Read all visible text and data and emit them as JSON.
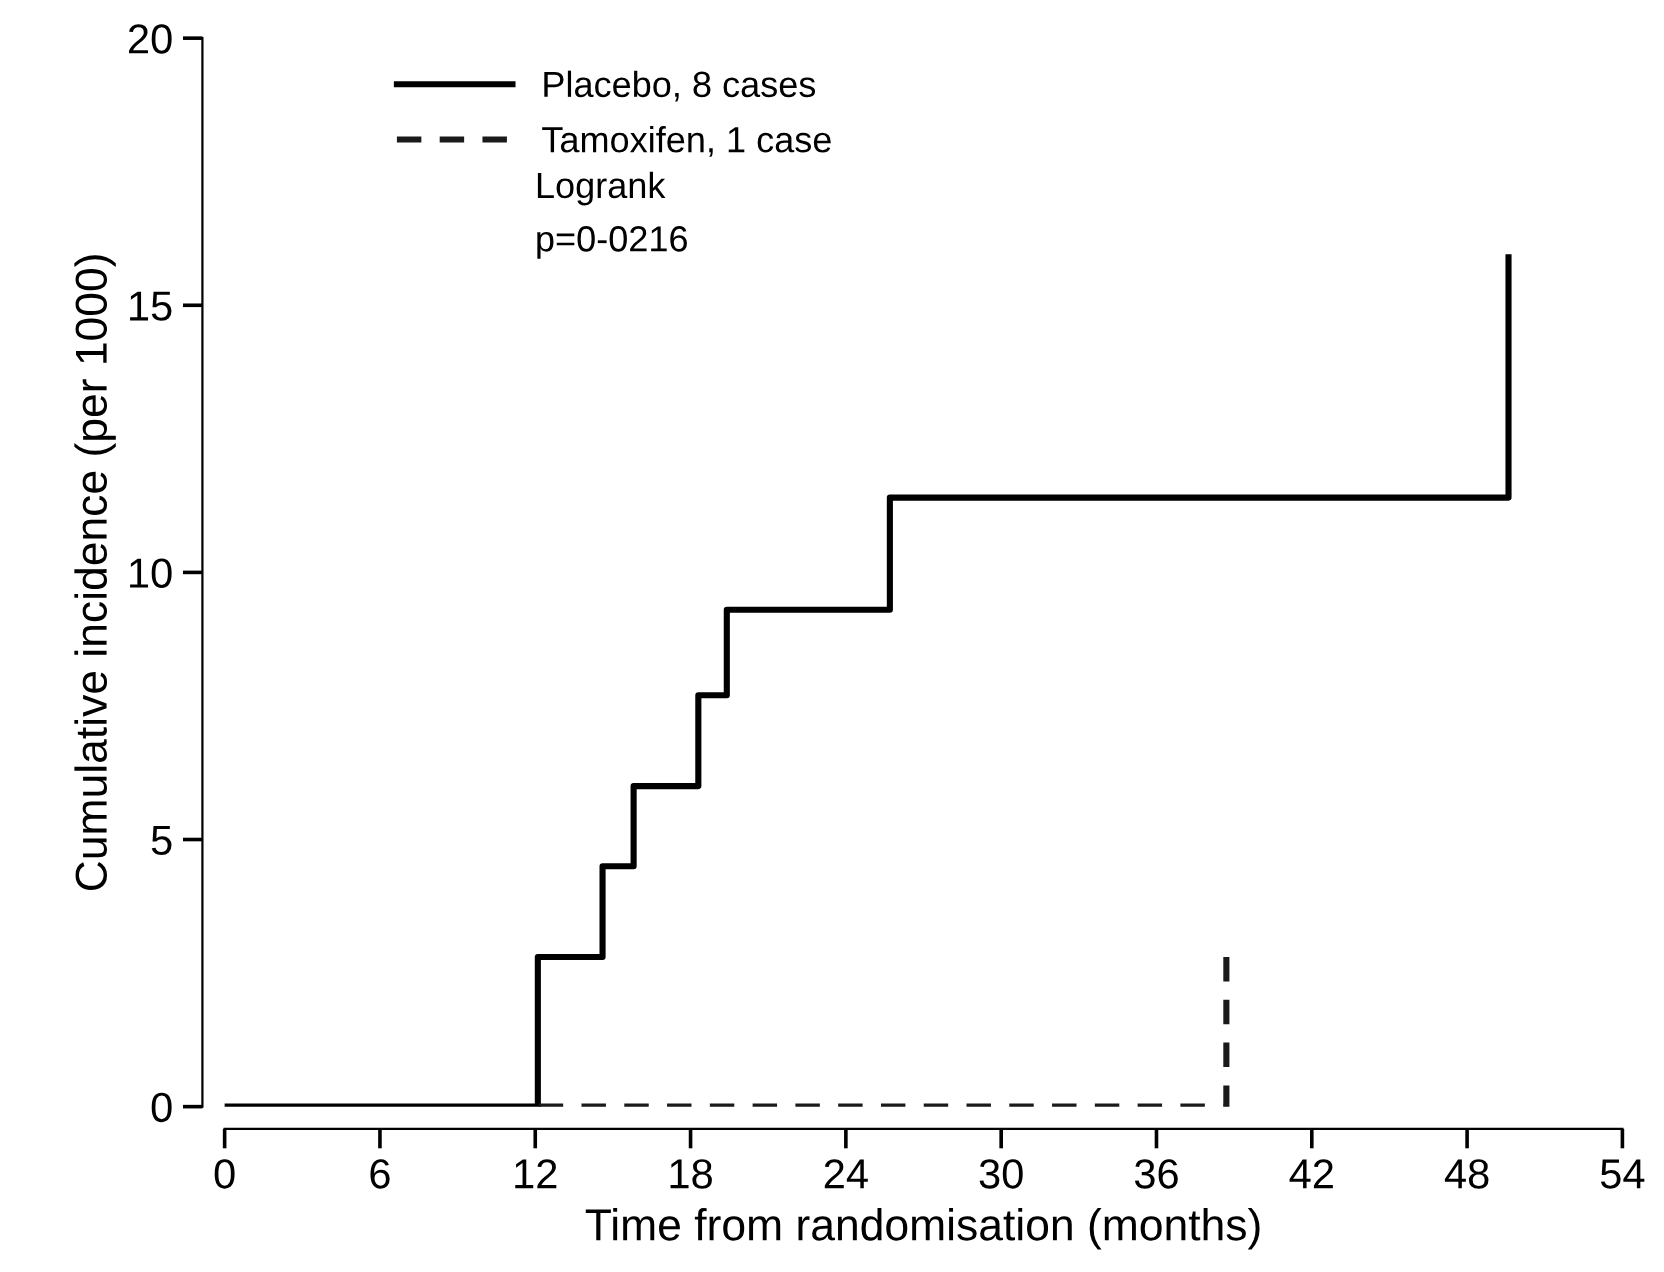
{
  "chart_data": {
    "type": "step",
    "xlabel": "Time from randomisation (months)",
    "ylabel": "Cumulative incidence (per 1000)",
    "xlim": [
      0,
      54
    ],
    "xticks": [
      0,
      6,
      12,
      18,
      24,
      30,
      36,
      42,
      48,
      54
    ],
    "ylim": [
      0,
      20
    ],
    "yticks": [
      0,
      5,
      10,
      15,
      20
    ],
    "series": [
      {
        "name": "Placebo, 8 cases",
        "color": "#000000",
        "line_style": "solid",
        "x": [
          0,
          12.1,
          14.6,
          15.8,
          18.3,
          19.4,
          25.7,
          49.6
        ],
        "values": [
          0,
          2.8,
          4.5,
          6.0,
          7.7,
          9.3,
          11.4,
          15.9
        ]
      },
      {
        "name": "Tamoxifen, 1 case",
        "color": "#1a1a1a",
        "line_style": "dashed",
        "x": [
          12.1,
          38.7
        ],
        "values": [
          0,
          2.8
        ]
      }
    ],
    "annotations": [
      "Logrank",
      "p=0-0216"
    ],
    "legend": "top left",
    "grid": false
  }
}
